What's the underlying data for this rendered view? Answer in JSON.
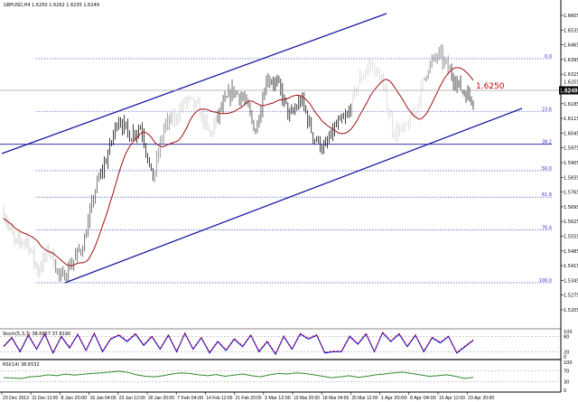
{
  "title": "GBPUSD,H4 1.6250 1.6262 1.6235 1.6249",
  "colors": {
    "background": "#ffffff",
    "channel": "#1a1aa0",
    "fib": "#3333cc",
    "ma": "#a01010",
    "current_price_line": "#a0a0a0",
    "stoch_main": "#0000cc",
    "stoch_signal": "#ff2020",
    "rsi": "#2e8b2e",
    "marker_label": "#c00000"
  },
  "chart_data": {
    "type": "candlestick",
    "symbol_timeframe": "GBPUSD,H4",
    "price_axis": {
      "range": [
        1.5135,
        1.6605
      ],
      "tick_labels": [
        "1.6605",
        "1.6535",
        "1.6465",
        "1.6395",
        "1.6325",
        "1.6255",
        "1.6185",
        "1.6115",
        "1.6045",
        "1.5975",
        "1.5905",
        "1.5835",
        "1.5765",
        "1.5695",
        "1.5625",
        "1.5555",
        "1.5485",
        "1.5415",
        "1.5345",
        "1.5275",
        "1.5205"
      ],
      "current_price": "1.6249"
    },
    "time_axis": {
      "tick_labels": [
        "23 Dec 2013",
        "31 Dec 12:00",
        "8 Jan 20:00",
        "16 Jan 04:00",
        "23 Jan 12:00",
        "30 Jan 20:00",
        "7 Feb 04:00",
        "14 Feb 12:00",
        "21 Feb 20:00",
        "3 Mar 12:00",
        "10 Mar 20:00",
        "18 Mar 04:00",
        "25 Mar 12:00",
        "1 Apr 20:00",
        "9 Apr 04:00",
        "16 Apr 12:00",
        "23 Apr 20:00"
      ]
    },
    "price_path": [
      1.5669,
      1.5519,
      1.554,
      1.539,
      1.5497,
      1.5347,
      1.5433,
      1.5519,
      1.5776,
      1.5927,
      1.612,
      1.6034,
      1.6077,
      1.5819,
      1.6077,
      1.612,
      1.6206,
      1.6163,
      1.6034,
      1.6163,
      1.6249,
      1.6206,
      1.6055,
      1.6313,
      1.627,
      1.612,
      1.6206,
      1.6034,
      1.5969,
      1.6077,
      1.612,
      1.6292,
      1.6377,
      1.6292,
      1.6055,
      1.6055,
      1.6163,
      1.6356,
      1.642,
      1.6334,
      1.6249,
      1.6206
    ],
    "moving_average": {
      "color": "#a01010"
    },
    "marker_label": "1.6250",
    "fibonacci": {
      "high": 1.6399,
      "low": 1.5334,
      "levels": [
        {
          "level": 0.0,
          "label": "0.0"
        },
        {
          "level": 23.6,
          "label": "23.6"
        },
        {
          "level": 38.2,
          "label": "38.2"
        },
        {
          "level": 50.0,
          "label": "50.0"
        },
        {
          "level": 61.8,
          "label": "61.8"
        },
        {
          "level": 76.4,
          "label": "76.4"
        },
        {
          "level": 100.0,
          "label": "100.0"
        }
      ]
    },
    "channel": {
      "upper_label": "",
      "lower_label": ""
    },
    "stochastic": {
      "label": "Stoch(5,3,3) 38.6657 37.8190",
      "levels": [
        "100",
        "80",
        "20",
        "0"
      ],
      "values": [
        40,
        75,
        20,
        85,
        30,
        90,
        15,
        80,
        35,
        88,
        25,
        92,
        20,
        70,
        85,
        60,
        90,
        45,
        80,
        30,
        85,
        20,
        92,
        30,
        75,
        15,
        60,
        25,
        70,
        40,
        85,
        20,
        60,
        10,
        80,
        30,
        90,
        70,
        85,
        15,
        20,
        20,
        80,
        50,
        90,
        20,
        95,
        60,
        90,
        40,
        85,
        20,
        75,
        55,
        80,
        15,
        40,
        65
      ]
    },
    "rsi": {
      "label": "RSI(14) 38.6532",
      "levels": [
        "100",
        "70",
        "30",
        "0"
      ],
      "values": [
        45,
        44,
        42,
        48,
        50,
        55,
        52,
        58,
        54,
        57,
        60,
        62,
        65,
        68,
        64,
        55,
        50,
        48,
        52,
        58,
        62,
        60,
        55,
        52,
        56,
        50,
        54,
        58,
        52,
        48,
        55,
        60,
        58,
        62,
        60,
        55,
        50,
        45,
        48,
        52,
        46,
        50,
        55,
        58,
        62,
        65,
        60,
        55,
        50,
        52,
        55,
        50,
        42,
        46
      ]
    }
  }
}
